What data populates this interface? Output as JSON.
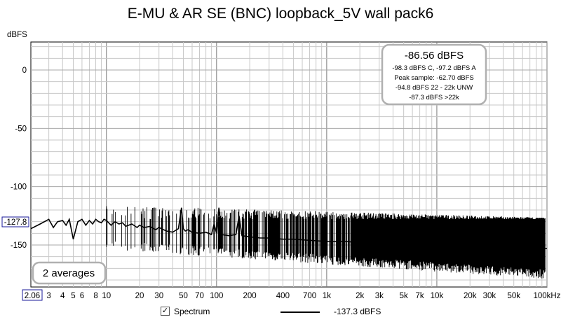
{
  "window": {
    "title": "E-MU & AR SE (BNC) loopback_5V wall pack6"
  },
  "summary_box": {
    "main": "-86.56 dBFS",
    "lines": [
      "-98.3 dBFS C, -97.2 dBFS A",
      "Peak sample: -62.70 dBFS",
      "-94.8 dBFS 22 - 22k UNW",
      "-87.3 dBFS >22k"
    ]
  },
  "averages_label": "2 averages",
  "legend": {
    "checkbox_mark": "✓",
    "series_label": "Spectrum",
    "series_value": "-137.3 dBFS"
  },
  "chart_data": {
    "type": "line",
    "title": "E-MU & AR SE (BNC) loopback_5V wall pack6",
    "ylabel": "dBFS",
    "xlabel": "",
    "x_scale": "log",
    "xlim": [
      2.06,
      100000
    ],
    "ylim": [
      -186,
      24
    ],
    "x_ticks": [
      {
        "value": 2.06,
        "label": "2.06"
      },
      {
        "value": 3,
        "label": "3"
      },
      {
        "value": 4,
        "label": "4"
      },
      {
        "value": 5,
        "label": "5"
      },
      {
        "value": 6,
        "label": "6"
      },
      {
        "value": 8,
        "label": "8"
      },
      {
        "value": 10,
        "label": "10"
      },
      {
        "value": 20,
        "label": "20"
      },
      {
        "value": 30,
        "label": "30"
      },
      {
        "value": 50,
        "label": "50"
      },
      {
        "value": 70,
        "label": "70"
      },
      {
        "value": 100,
        "label": "100"
      },
      {
        "value": 200,
        "label": "200"
      },
      {
        "value": 400,
        "label": "400"
      },
      {
        "value": 700,
        "label": "700"
      },
      {
        "value": 1000,
        "label": "1k"
      },
      {
        "value": 2000,
        "label": "2k"
      },
      {
        "value": 3000,
        "label": "3k"
      },
      {
        "value": 5000,
        "label": "5k"
      },
      {
        "value": 7000,
        "label": "7k"
      },
      {
        "value": 10000,
        "label": "10k"
      },
      {
        "value": 20000,
        "label": "20k"
      },
      {
        "value": 30000,
        "label": "30k"
      },
      {
        "value": 50000,
        "label": "50k"
      },
      {
        "value": 100000,
        "label": "100kHz"
      }
    ],
    "y_ticks": [
      {
        "value": 0,
        "label": "0"
      },
      {
        "value": -50,
        "label": "-50"
      },
      {
        "value": -100,
        "label": "-100"
      },
      {
        "value": -150,
        "label": "-150"
      }
    ],
    "cursor_y_label": "-127.8",
    "grid": true,
    "series": [
      {
        "name": "Spectrum",
        "color": "#000000",
        "x": [
          2.06,
          2.5,
          3,
          3.3,
          3.6,
          4,
          4.3,
          4.6,
          5,
          5.5,
          6,
          6.5,
          7,
          7.5,
          8,
          8.5,
          9,
          9.5,
          10,
          11,
          12,
          13,
          14,
          15,
          17,
          19,
          20,
          22,
          25,
          28,
          30,
          35,
          40,
          45,
          48,
          50,
          52,
          55,
          60,
          70,
          80,
          90,
          95,
          100,
          105,
          110,
          130,
          150,
          160,
          170,
          200,
          250,
          300,
          400,
          500,
          700,
          1000,
          1500,
          2000,
          3000,
          5000,
          7000,
          10000,
          15000,
          20000,
          30000,
          50000,
          70000,
          100000
        ],
        "values": [
          -136,
          -132,
          -128,
          -135,
          -130,
          -129,
          -133,
          -128,
          -145,
          -130,
          -128,
          -133,
          -129,
          -132,
          -128,
          -130,
          -131,
          -128,
          -129,
          -133,
          -130,
          -132,
          -131,
          -134,
          -132,
          -135,
          -133,
          -135,
          -134,
          -137,
          -135,
          -138,
          -139,
          -136,
          -118,
          -136,
          -138,
          -137,
          -139,
          -140,
          -139,
          -141,
          -132,
          -140,
          -118,
          -141,
          -142,
          -141,
          -125,
          -142,
          -143,
          -144,
          -144,
          -145,
          -145,
          -146,
          -147,
          -147,
          -148,
          -148,
          -149,
          -150,
          -150,
          -151,
          -151,
          -152,
          -152,
          -153,
          -153
        ]
      }
    ],
    "noise": {
      "upper": -127.8,
      "lower_start": -150,
      "lower_end": -175
    }
  },
  "colors": {
    "grid": "#c8c8c8",
    "grid_major": "#7a7a7a",
    "trace": "#000000",
    "box_border": "#b0b0b0",
    "cursor_label": "#1a1a99"
  }
}
